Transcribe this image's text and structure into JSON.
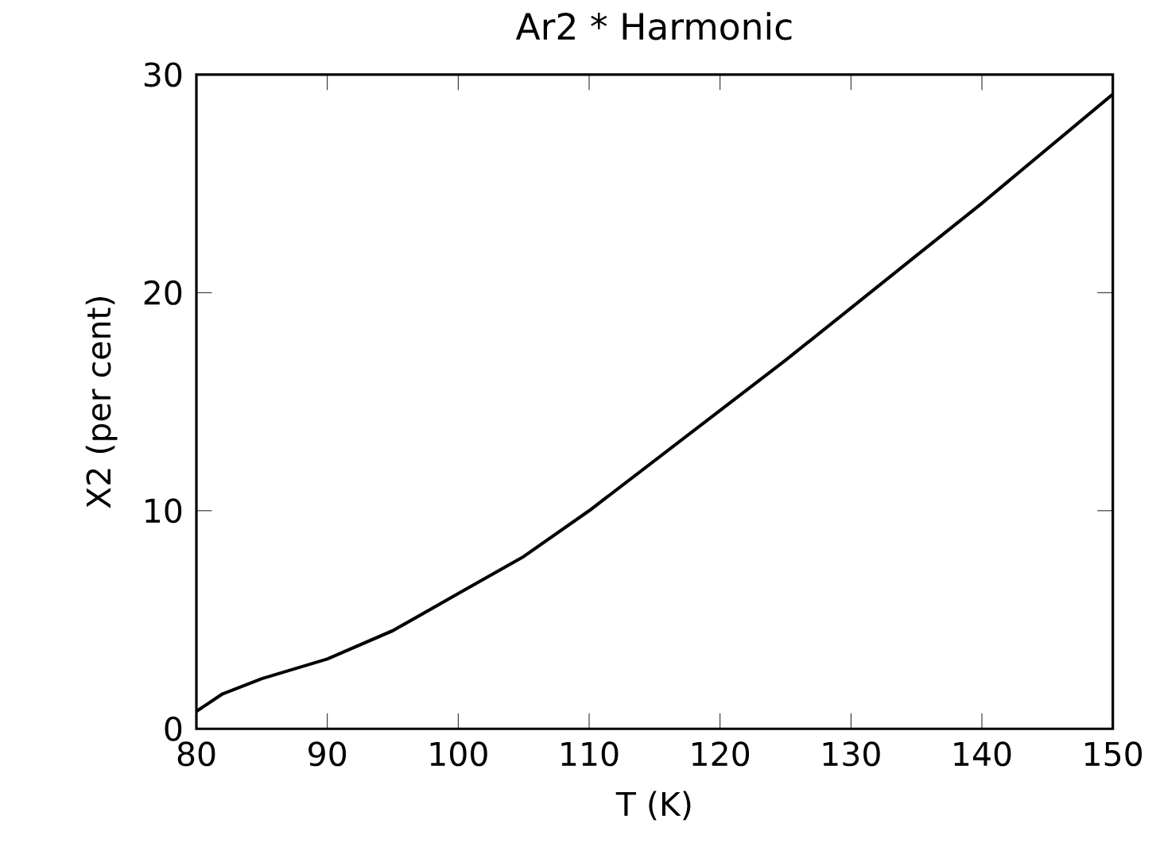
{
  "chart_data": {
    "type": "line",
    "title": "Ar2 * Harmonic",
    "xlabel": "T (K)",
    "ylabel": "X2 (per cent)",
    "x": [
      80,
      82,
      85,
      90,
      95,
      100,
      105,
      110,
      115,
      120,
      125,
      130,
      135,
      140,
      145,
      150
    ],
    "series": [
      {
        "color": "#000000",
        "values": [
          0.8,
          1.6,
          2.3,
          3.2,
          4.5,
          6.2,
          7.9,
          10.0,
          12.3,
          14.6,
          16.9,
          19.3,
          21.7,
          24.1,
          26.6,
          29.1
        ]
      }
    ],
    "xlim": [
      80,
      150
    ],
    "ylim": [
      0,
      30
    ],
    "xticks": [
      80,
      90,
      100,
      110,
      120,
      130,
      140,
      150
    ],
    "yticks": [
      0,
      10,
      20,
      30
    ],
    "marker": "none",
    "line_style": "solid"
  }
}
